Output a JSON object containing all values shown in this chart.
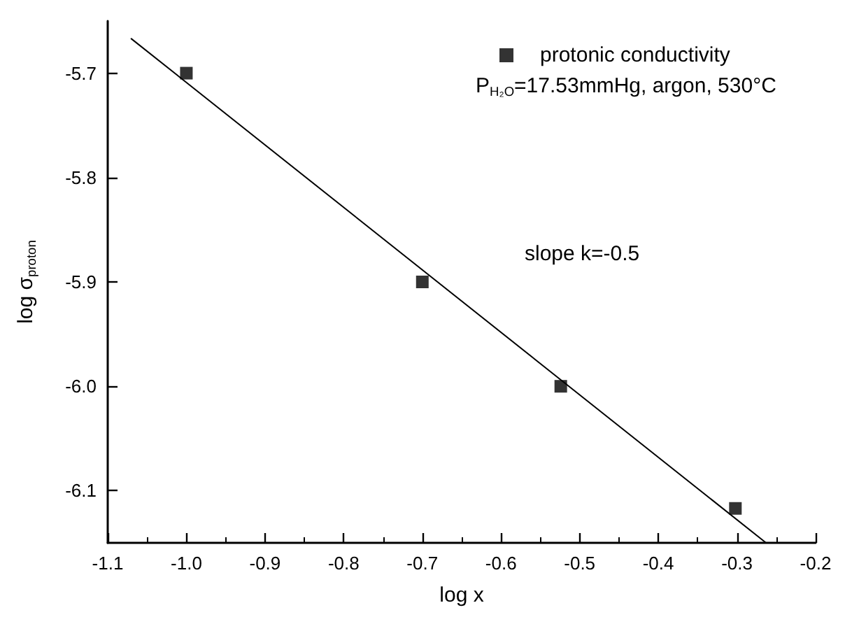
{
  "chart_data": {
    "type": "scatter",
    "xlabel": "log x",
    "ylabel": "log σ$_{proton}$",
    "annotations": [
      "P$_{H₂O}$=17.53mmHg, argon, 530°C",
      "slope k=-0.5"
    ],
    "xlim": [
      -1.1,
      -0.2
    ],
    "xticks": [
      -1.1,
      {
        "value": -1,
        "label": "-1.0"
      },
      -0.9,
      -0.8,
      -0.7,
      -0.6,
      -0.5,
      -0.4,
      -0.3,
      -0.2
    ],
    "ylim": [
      -6.15,
      -5.65
    ],
    "yticks": [
      -6.1,
      {
        "value": -6,
        "label": "-6.0"
      },
      -5.9,
      -5.8,
      -5.7
    ],
    "grid": false,
    "legend": "top right",
    "marker": "square",
    "series": [
      {
        "name": "protonic conductivity",
        "color": "#000000",
        "x": [
          -1.0,
          -0.7,
          -0.524,
          -0.302
        ],
        "values": [
          -5.7,
          -5.9,
          -6.0,
          -6.117
        ]
      },
      {
        "type": "line",
        "color": "#000000",
        "x": [
          -1.07,
          -0.263
        ],
        "values": [
          -5.667,
          -6.15
        ],
        "marker": "none",
        "line_style": "solid"
      }
    ]
  }
}
